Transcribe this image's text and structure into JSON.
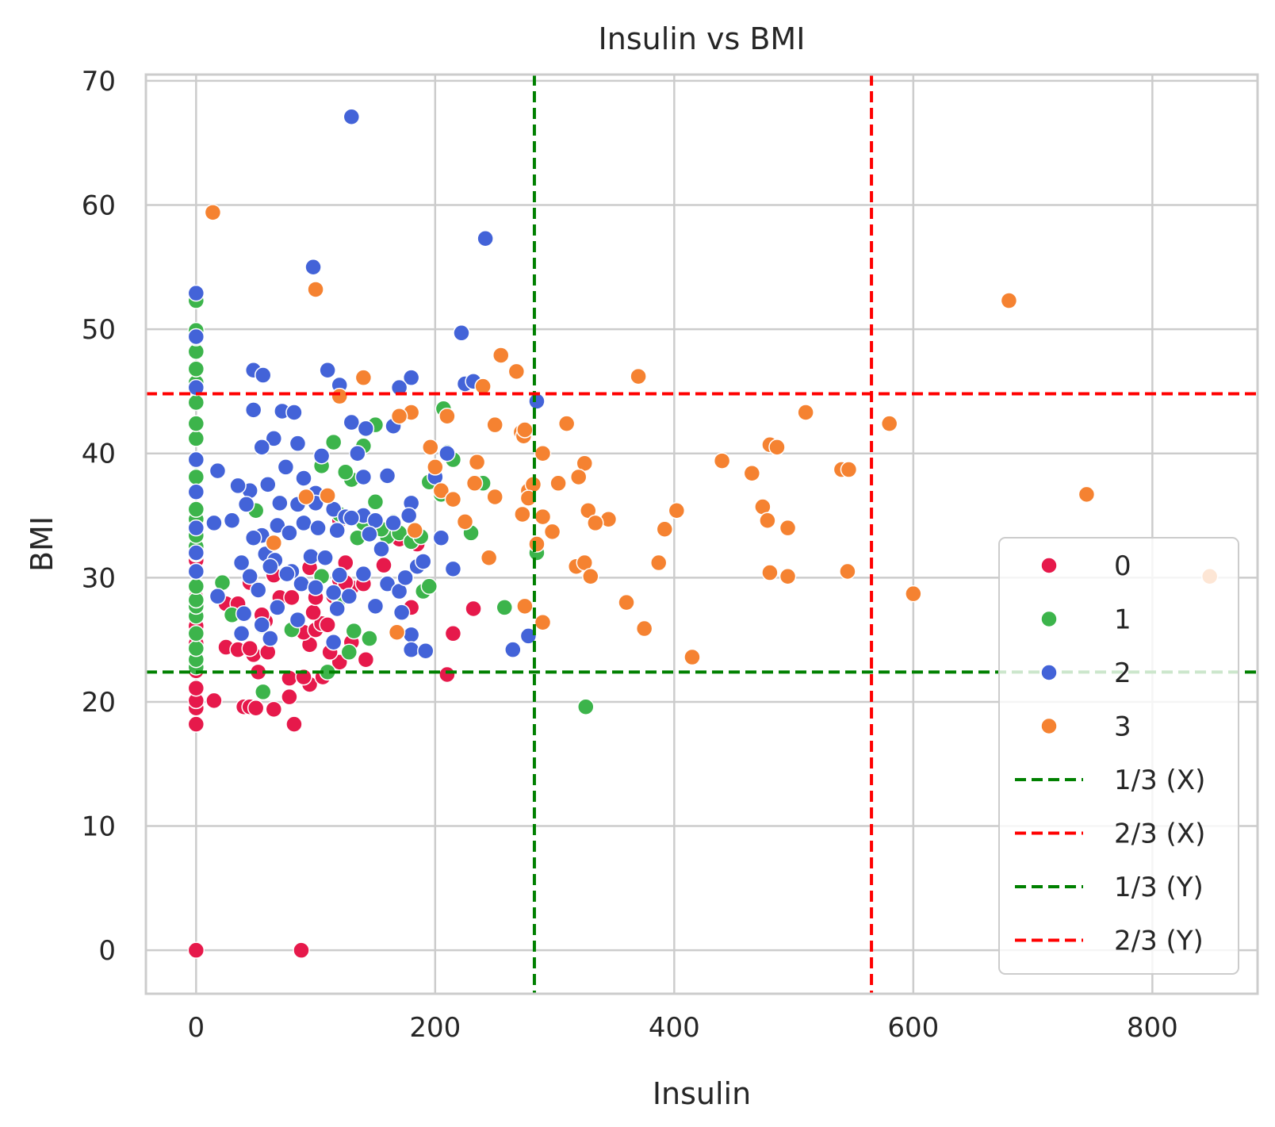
{
  "chart_data": {
    "type": "scatter",
    "title": "Insulin vs BMI",
    "xlabel": "Insulin",
    "ylabel": "BMI",
    "xlim": [
      -42,
      888
    ],
    "ylim": [
      -3.5,
      70.5
    ],
    "xticks": [
      0,
      200,
      400,
      600,
      800
    ],
    "yticks": [
      0,
      10,
      20,
      30,
      40,
      50,
      60,
      70
    ],
    "xtick_labels": [
      "0",
      "200",
      "400",
      "600",
      "800"
    ],
    "ytick_labels": [
      "0",
      "10",
      "20",
      "30",
      "40",
      "50",
      "60",
      "70"
    ],
    "grid": true,
    "legend_position": "lower-right",
    "series": [
      {
        "name": "0",
        "color": "#e6194b",
        "points": [
          [
            0,
            0
          ],
          [
            88,
            0
          ],
          [
            0,
            18.2
          ],
          [
            82,
            18.2
          ],
          [
            0,
            19.5
          ],
          [
            40,
            19.6
          ],
          [
            45,
            19.6
          ],
          [
            50,
            19.5
          ],
          [
            65,
            19.4
          ],
          [
            0,
            20.1
          ],
          [
            15,
            20.1
          ],
          [
            78,
            20.4
          ],
          [
            0,
            21.1
          ],
          [
            95,
            21.4
          ],
          [
            78,
            21.9
          ],
          [
            90,
            22.0
          ],
          [
            106,
            22.0
          ],
          [
            0,
            22.5
          ],
          [
            210,
            22.2
          ],
          [
            52,
            22.4
          ],
          [
            0,
            23.1
          ],
          [
            120,
            23.2
          ],
          [
            142,
            23.4
          ],
          [
            48,
            23.8
          ],
          [
            60,
            24.0
          ],
          [
            112,
            24.0
          ],
          [
            25,
            24.4
          ],
          [
            35,
            24.2
          ],
          [
            45,
            24.3
          ],
          [
            95,
            24.6
          ],
          [
            0,
            24.7
          ],
          [
            130,
            24.8
          ],
          [
            215,
            25.5
          ],
          [
            90,
            25.6
          ],
          [
            0,
            26.1
          ],
          [
            100,
            25.8
          ],
          [
            105,
            26.3
          ],
          [
            110,
            26.2
          ],
          [
            58,
            26.5
          ],
          [
            55,
            27.0
          ],
          [
            25,
            27.9
          ],
          [
            35,
            27.9
          ],
          [
            98,
            27.2
          ],
          [
            180,
            27.6
          ],
          [
            232,
            27.5
          ],
          [
            0,
            28.4
          ],
          [
            70,
            28.4
          ],
          [
            80,
            28.4
          ],
          [
            100,
            28.4
          ],
          [
            115,
            28.5
          ],
          [
            130,
            29.2
          ],
          [
            140,
            29.5
          ],
          [
            45,
            29.6
          ],
          [
            120,
            29.8
          ],
          [
            125,
            29.6
          ],
          [
            65,
            30.2
          ],
          [
            95,
            30.8
          ],
          [
            157,
            31.0
          ],
          [
            0,
            31.4
          ],
          [
            125,
            31.2
          ],
          [
            170,
            33.1
          ],
          [
            185,
            32.7
          ],
          [
            120,
            34.6
          ]
        ]
      },
      {
        "name": "1",
        "color": "#3cb44b",
        "points": [
          [
            0,
            22.8
          ],
          [
            0,
            23.4
          ],
          [
            0,
            24.3
          ],
          [
            0,
            25.5
          ],
          [
            0,
            26.9
          ],
          [
            0,
            27.7
          ],
          [
            0,
            28.2
          ],
          [
            0,
            29.3
          ],
          [
            0,
            30.5
          ],
          [
            0,
            31.9
          ],
          [
            0,
            32.5
          ],
          [
            0,
            33.4
          ],
          [
            0,
            34.7
          ],
          [
            0,
            35.5
          ],
          [
            0,
            36.9
          ],
          [
            0,
            38.1
          ],
          [
            0,
            39.4
          ],
          [
            0,
            41.2
          ],
          [
            0,
            42.4
          ],
          [
            0,
            44.1
          ],
          [
            0,
            45.7
          ],
          [
            0,
            46.8
          ],
          [
            0,
            48.2
          ],
          [
            0,
            49.3
          ],
          [
            0,
            49.9
          ],
          [
            0,
            52.3
          ],
          [
            56,
            20.8
          ],
          [
            326,
            19.6
          ],
          [
            110,
            22.4
          ],
          [
            30,
            27.0
          ],
          [
            22,
            29.6
          ],
          [
            55,
            26.1
          ],
          [
            80,
            25.8
          ],
          [
            128,
            24.0
          ],
          [
            132,
            25.7
          ],
          [
            145,
            25.1
          ],
          [
            105,
            30.1
          ],
          [
            120,
            28.3
          ],
          [
            135,
            33.2
          ],
          [
            140,
            34.4
          ],
          [
            150,
            36.1
          ],
          [
            160,
            33.3
          ],
          [
            165,
            34.5
          ],
          [
            170,
            33.6
          ],
          [
            180,
            32.9
          ],
          [
            188,
            33.3
          ],
          [
            190,
            28.9
          ],
          [
            195,
            29.3
          ],
          [
            195,
            37.7
          ],
          [
            205,
            36.7
          ],
          [
            210,
            40.1
          ],
          [
            215,
            39.5
          ],
          [
            230,
            33.6
          ],
          [
            240,
            37.6
          ],
          [
            258,
            27.6
          ],
          [
            285,
            32.0
          ],
          [
            50,
            35.4
          ],
          [
            105,
            39.0
          ],
          [
            115,
            40.9
          ],
          [
            130,
            37.9
          ],
          [
            140,
            40.6
          ],
          [
            150,
            42.3
          ],
          [
            125,
            38.5
          ],
          [
            207,
            43.6
          ],
          [
            120,
            35.1
          ],
          [
            155,
            33.9
          ]
        ]
      },
      {
        "name": "2",
        "color": "#4363d8",
        "points": [
          [
            130,
            67.1
          ],
          [
            242,
            57.3
          ],
          [
            98,
            55.0
          ],
          [
            0,
            52.9
          ],
          [
            222,
            49.7
          ],
          [
            0,
            49.4
          ],
          [
            48,
            46.7
          ],
          [
            56,
            46.3
          ],
          [
            110,
            46.7
          ],
          [
            120,
            45.5
          ],
          [
            180,
            46.1
          ],
          [
            170,
            45.3
          ],
          [
            225,
            45.6
          ],
          [
            232,
            45.8
          ],
          [
            0,
            45.3
          ],
          [
            285,
            44.2
          ],
          [
            48,
            43.5
          ],
          [
            72,
            43.4
          ],
          [
            82,
            43.3
          ],
          [
            130,
            42.5
          ],
          [
            142,
            42.0
          ],
          [
            165,
            42.2
          ],
          [
            65,
            41.2
          ],
          [
            85,
            40.8
          ],
          [
            105,
            39.8
          ],
          [
            55,
            40.5
          ],
          [
            135,
            40.0
          ],
          [
            210,
            40.0
          ],
          [
            18,
            38.6
          ],
          [
            45,
            37.0
          ],
          [
            60,
            37.5
          ],
          [
            75,
            38.9
          ],
          [
            90,
            38.0
          ],
          [
            100,
            36.8
          ],
          [
            140,
            38.1
          ],
          [
            160,
            38.2
          ],
          [
            180,
            36.0
          ],
          [
            200,
            38.1
          ],
          [
            35,
            37.4
          ],
          [
            0,
            36.9
          ],
          [
            0,
            39.5
          ],
          [
            70,
            36.0
          ],
          [
            85,
            35.9
          ],
          [
            100,
            36.0
          ],
          [
            115,
            35.5
          ],
          [
            125,
            34.9
          ],
          [
            140,
            35.0
          ],
          [
            150,
            34.6
          ],
          [
            165,
            34.4
          ],
          [
            178,
            35.0
          ],
          [
            15,
            34.4
          ],
          [
            30,
            34.6
          ],
          [
            42,
            35.9
          ],
          [
            55,
            33.4
          ],
          [
            68,
            34.2
          ],
          [
            78,
            33.6
          ],
          [
            90,
            34.4
          ],
          [
            102,
            34.0
          ],
          [
            118,
            33.8
          ],
          [
            130,
            34.8
          ],
          [
            145,
            33.5
          ],
          [
            155,
            32.3
          ],
          [
            185,
            30.9
          ],
          [
            205,
            33.2
          ],
          [
            48,
            33.2
          ],
          [
            58,
            31.9
          ],
          [
            66,
            31.4
          ],
          [
            80,
            30.5
          ],
          [
            96,
            31.7
          ],
          [
            108,
            31.6
          ],
          [
            120,
            30.2
          ],
          [
            140,
            30.3
          ],
          [
            160,
            29.5
          ],
          [
            170,
            28.9
          ],
          [
            175,
            30.0
          ],
          [
            190,
            31.3
          ],
          [
            38,
            31.2
          ],
          [
            45,
            30.1
          ],
          [
            52,
            29.0
          ],
          [
            62,
            30.9
          ],
          [
            76,
            30.3
          ],
          [
            88,
            29.5
          ],
          [
            100,
            29.2
          ],
          [
            115,
            28.8
          ],
          [
            128,
            28.5
          ],
          [
            150,
            27.7
          ],
          [
            172,
            27.2
          ],
          [
            215,
            30.7
          ],
          [
            18,
            28.5
          ],
          [
            40,
            27.1
          ],
          [
            55,
            26.2
          ],
          [
            68,
            27.6
          ],
          [
            85,
            26.6
          ],
          [
            118,
            27.5
          ],
          [
            0,
            30.5
          ],
          [
            0,
            32.0
          ],
          [
            0,
            34.0
          ],
          [
            38,
            25.5
          ],
          [
            62,
            25.1
          ],
          [
            115,
            24.8
          ],
          [
            180,
            25.4
          ],
          [
            180,
            24.2
          ],
          [
            192,
            24.1
          ],
          [
            265,
            24.2
          ],
          [
            278,
            25.3
          ]
        ]
      },
      {
        "name": "3",
        "color": "#f58231",
        "points": [
          [
            14,
            59.4
          ],
          [
            100,
            53.2
          ],
          [
            680,
            52.3
          ],
          [
            255,
            47.9
          ],
          [
            268,
            46.6
          ],
          [
            370,
            46.2
          ],
          [
            140,
            46.1
          ],
          [
            240,
            45.4
          ],
          [
            510,
            43.3
          ],
          [
            580,
            42.4
          ],
          [
            310,
            42.4
          ],
          [
            250,
            42.3
          ],
          [
            180,
            43.3
          ],
          [
            170,
            43.0
          ],
          [
            210,
            43.0
          ],
          [
            120,
            44.6
          ],
          [
            272,
            41.7
          ],
          [
            274,
            41.4
          ],
          [
            275,
            41.9
          ],
          [
            290,
            40.0
          ],
          [
            196,
            40.5
          ],
          [
            480,
            40.7
          ],
          [
            486,
            40.5
          ],
          [
            440,
            39.4
          ],
          [
            465,
            38.4
          ],
          [
            540,
            38.7
          ],
          [
            546,
            38.7
          ],
          [
            325,
            39.2
          ],
          [
            235,
            39.3
          ],
          [
            200,
            38.9
          ],
          [
            320,
            38.1
          ],
          [
            303,
            37.6
          ],
          [
            278,
            37.0
          ],
          [
            282,
            37.5
          ],
          [
            233,
            37.6
          ],
          [
            205,
            37.0
          ],
          [
            215,
            36.3
          ],
          [
            745,
            36.7
          ],
          [
            474,
            35.7
          ],
          [
            402,
            35.4
          ],
          [
            328,
            35.4
          ],
          [
            273,
            35.1
          ],
          [
            250,
            36.5
          ],
          [
            92,
            36.5
          ],
          [
            110,
            36.6
          ],
          [
            278,
            36.4
          ],
          [
            478,
            34.6
          ],
          [
            495,
            34.0
          ],
          [
            345,
            34.7
          ],
          [
            334,
            34.4
          ],
          [
            392,
            33.9
          ],
          [
            290,
            34.9
          ],
          [
            225,
            34.5
          ],
          [
            298,
            33.7
          ],
          [
            183,
            33.8
          ],
          [
            285,
            32.7
          ],
          [
            65,
            32.8
          ],
          [
            318,
            30.9
          ],
          [
            325,
            31.2
          ],
          [
            330,
            30.1
          ],
          [
            387,
            31.2
          ],
          [
            245,
            31.6
          ],
          [
            480,
            30.4
          ],
          [
            495,
            30.1
          ],
          [
            545,
            30.5
          ],
          [
            848,
            30.1
          ],
          [
            600,
            28.7
          ],
          [
            360,
            28.0
          ],
          [
            290,
            26.4
          ],
          [
            375,
            25.9
          ],
          [
            275,
            27.7
          ],
          [
            168,
            25.6
          ],
          [
            415,
            23.6
          ]
        ]
      }
    ],
    "reference_lines": [
      {
        "label": "1/3 (X)",
        "orientation": "vertical",
        "value": 283,
        "color": "#008000"
      },
      {
        "label": "2/3 (X)",
        "orientation": "vertical",
        "value": 565,
        "color": "#ff0000"
      },
      {
        "label": "1/3 (Y)",
        "orientation": "horizontal",
        "value": 22.4,
        "color": "#008000"
      },
      {
        "label": "2/3 (Y)",
        "orientation": "horizontal",
        "value": 44.8,
        "color": "#ff0000"
      }
    ]
  }
}
